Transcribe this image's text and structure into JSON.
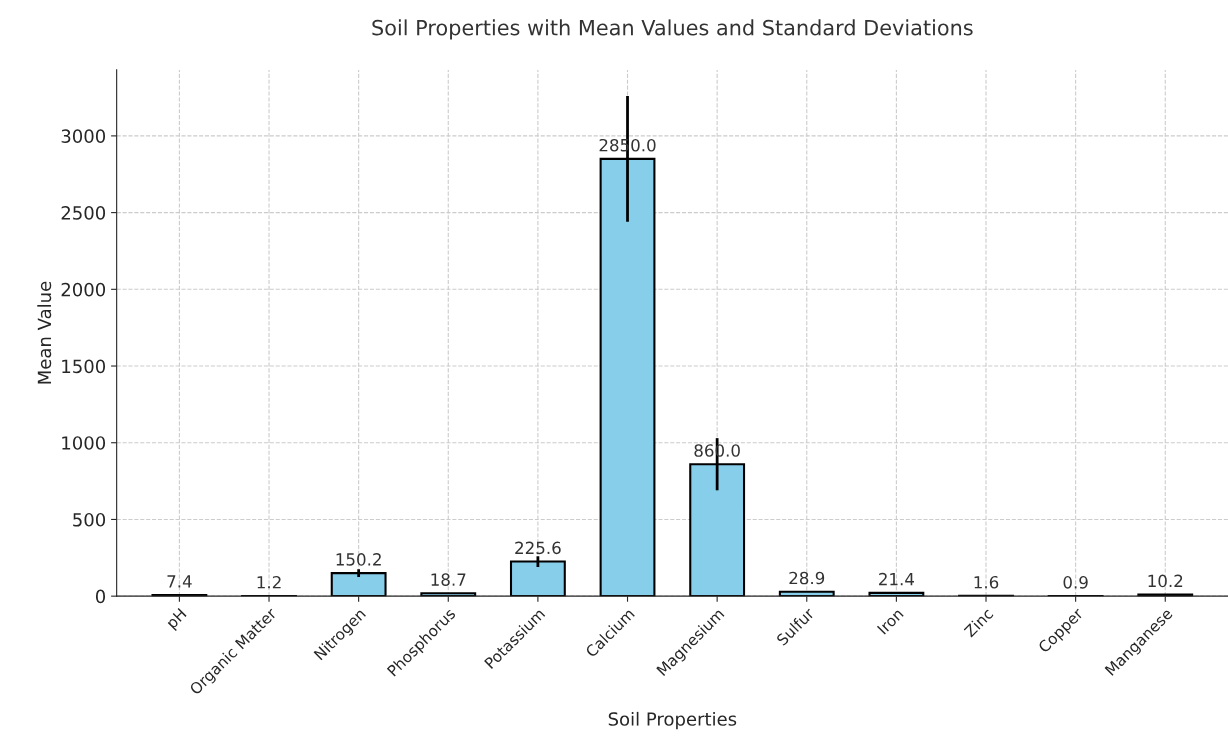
{
  "chart_data": {
    "type": "bar",
    "title": "Soil Properties with Mean Values and Standard Deviations",
    "xlabel": "Soil Properties",
    "ylabel": "Mean Value",
    "categories": [
      "pH",
      "Organic Matter",
      "Nitrogen",
      "Phosphorus",
      "Potassium",
      "Calcium",
      "Magnesium",
      "Sulfur",
      "Iron",
      "Zinc",
      "Copper",
      "Manganese"
    ],
    "values": [
      7.4,
      1.2,
      150.2,
      18.7,
      225.6,
      2850.0,
      860.0,
      28.9,
      21.4,
      1.6,
      0.9,
      10.2
    ],
    "value_labels": [
      "7.4",
      "1.2",
      "150.2",
      "18.7",
      "225.6",
      "2850.0",
      "860.0",
      "28.9",
      "21.4",
      "1.6",
      "0.9",
      "10.2"
    ],
    "errors": [
      null,
      null,
      25,
      null,
      35,
      410,
      170,
      null,
      null,
      null,
      null,
      null
    ],
    "color": "#87ceeb",
    "ylim": [
      0,
      3430
    ],
    "yticks": [
      0,
      500,
      1000,
      1500,
      2000,
      2500,
      3000
    ],
    "grid": true
  }
}
